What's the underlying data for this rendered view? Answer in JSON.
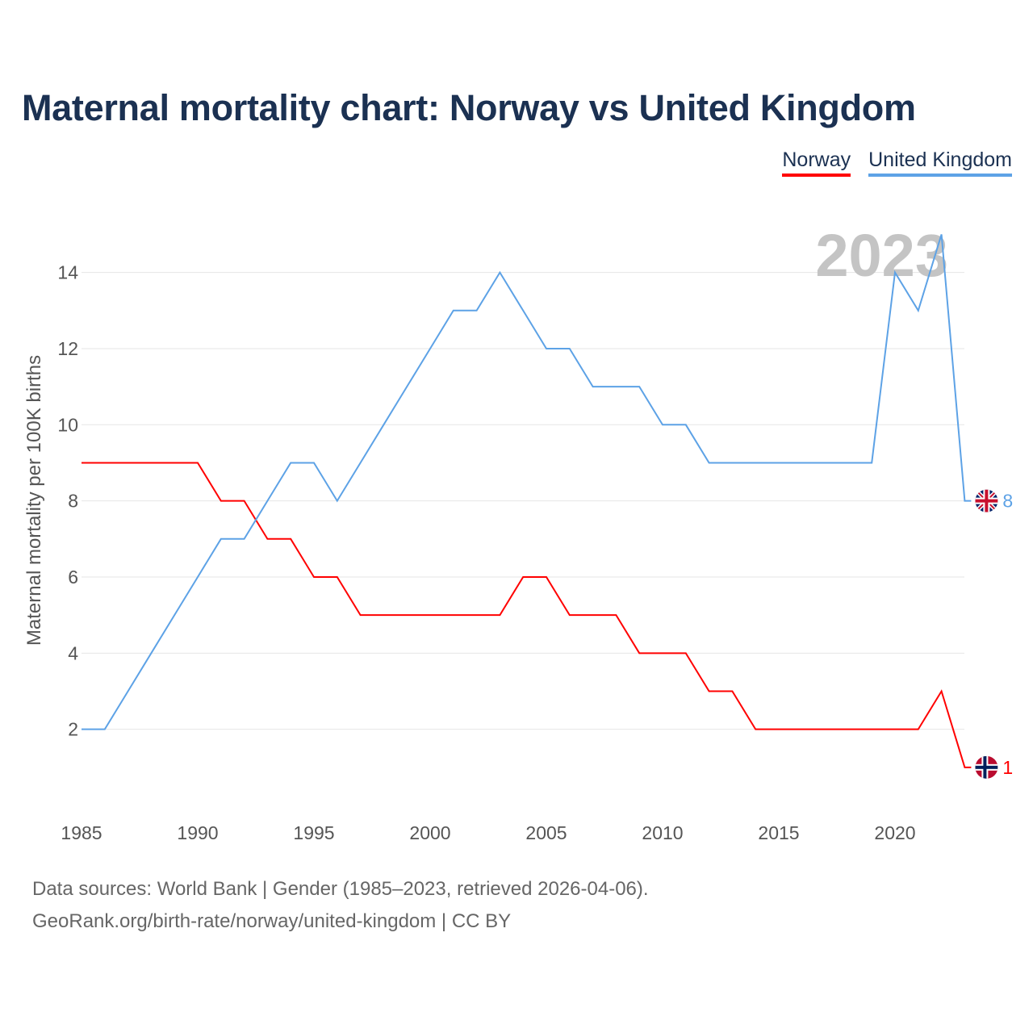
{
  "title": "Maternal mortality chart: Norway vs United Kingdom",
  "source_line1": "Data sources: World Bank | Gender (1985–2023, retrieved 2026-04-06).",
  "source_line2": "GeoRank.org/birth-rate/norway/united-kingdom | CC BY",
  "chart_data": {
    "type": "line",
    "title": "Maternal mortality chart: Norway vs United Kingdom",
    "ylabel": "Maternal mortality per 100K births",
    "xlabel": "",
    "watermark_year": "2023",
    "x": [
      1985,
      1986,
      1987,
      1988,
      1989,
      1990,
      1991,
      1992,
      1993,
      1994,
      1995,
      1996,
      1997,
      1998,
      1999,
      2000,
      2001,
      2002,
      2003,
      2004,
      2005,
      2006,
      2007,
      2008,
      2009,
      2010,
      2011,
      2012,
      2013,
      2014,
      2015,
      2016,
      2017,
      2018,
      2019,
      2020,
      2021,
      2022,
      2023
    ],
    "xticks": [
      1985,
      1990,
      1995,
      2000,
      2005,
      2010,
      2015,
      2020
    ],
    "yticks": [
      2,
      4,
      6,
      8,
      10,
      12,
      14
    ],
    "xlim": [
      1985,
      2023
    ],
    "ylim": [
      0,
      16
    ],
    "legend": "top-right",
    "series": [
      {
        "name": "Norway",
        "color": "#ff0000",
        "end_label": "1",
        "values": [
          9,
          9,
          9,
          9,
          9,
          9,
          8,
          8,
          7,
          7,
          6,
          6,
          5,
          5,
          5,
          5,
          5,
          5,
          5,
          6,
          6,
          5,
          5,
          5,
          4,
          4,
          4,
          3,
          3,
          2,
          2,
          2,
          2,
          2,
          2,
          2,
          2,
          3,
          1
        ]
      },
      {
        "name": "United Kingdom",
        "color": "#5da2e6",
        "end_label": "8",
        "values": [
          2,
          2,
          3,
          4,
          5,
          6,
          7,
          7,
          8,
          9,
          9,
          8,
          9,
          10,
          11,
          12,
          13,
          13,
          14,
          13,
          12,
          12,
          11,
          11,
          11,
          10,
          10,
          9,
          9,
          9,
          9,
          9,
          9,
          9,
          9,
          14,
          13,
          15,
          8
        ]
      }
    ]
  }
}
